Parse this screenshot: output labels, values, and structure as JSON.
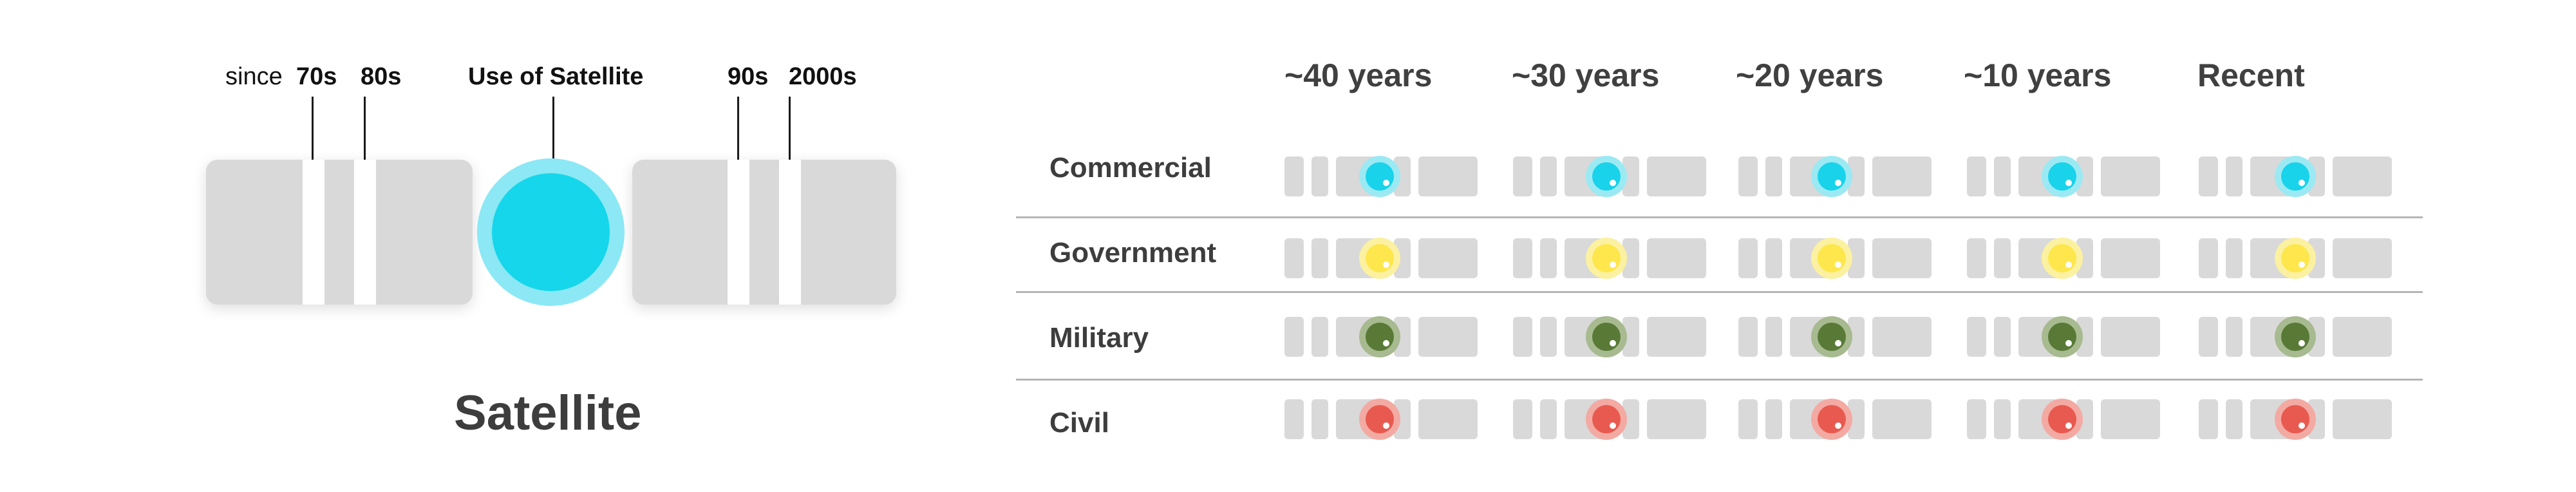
{
  "left": {
    "labels": {
      "since": "since",
      "e70": "70s",
      "e80": "80s",
      "use": "Use of Satellite",
      "e90": "90s",
      "e2000": "2000s"
    },
    "title": "Satellite",
    "colors": {
      "block": "#d9d9d9",
      "satellite_core": "#15d6ea",
      "satellite_halo": "#8be8f4"
    }
  },
  "table": {
    "columns": [
      "~40 years",
      "~30 years",
      "~20 years",
      "~10 years",
      "Recent"
    ],
    "rows": [
      {
        "label": "Commercial",
        "color": "#18d3ea",
        "halo": "#9be9f3"
      },
      {
        "label": "Government",
        "color": "#fde74c",
        "halo": "#fbf1a0"
      },
      {
        "label": "Military",
        "color": "#587a36",
        "halo": "#a7ba90"
      },
      {
        "label": "Civil",
        "color": "#e85a4f",
        "halo": "#f3aaa3"
      }
    ]
  }
}
